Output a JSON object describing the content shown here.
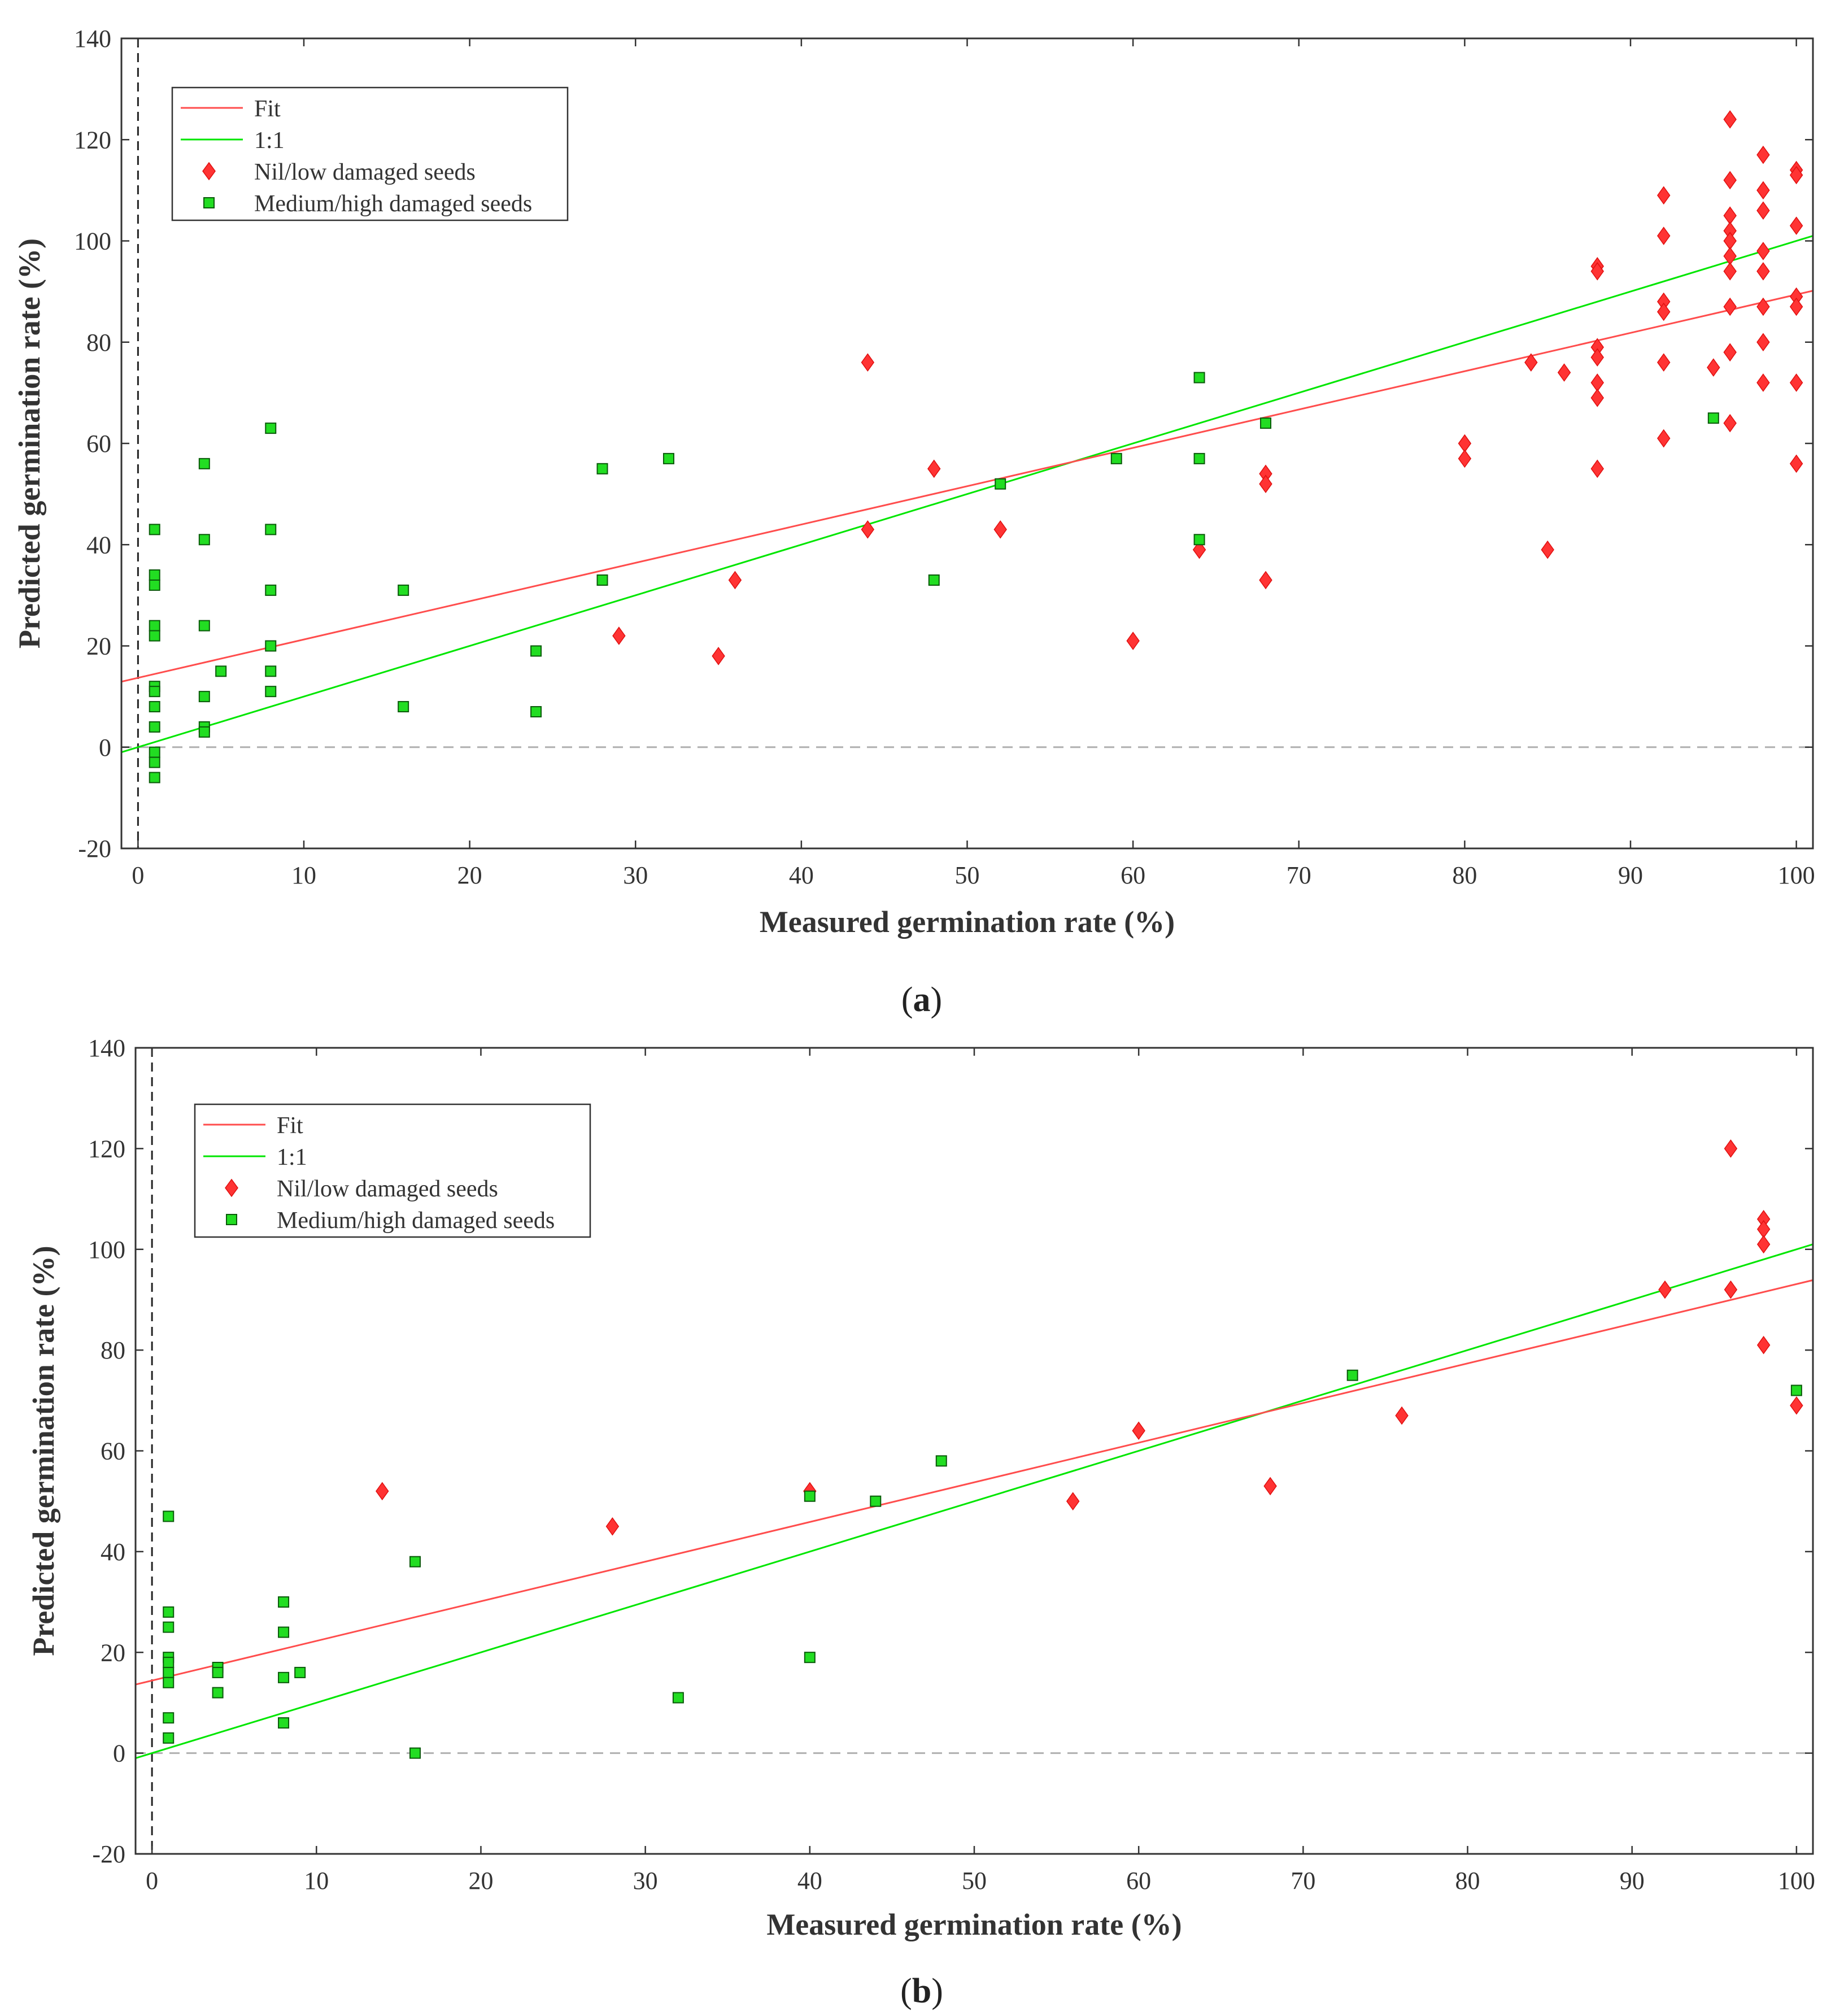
{
  "colors": {
    "fit": "#ff4d4d",
    "one_to_one": "#00e600",
    "nil_low": "#ff3333",
    "medium_high": "#22dd22",
    "zero_line": "#b0b0b0",
    "axis": "#333333"
  },
  "chart_data": [
    {
      "type": "scatter",
      "panel_label": "(a)",
      "panel_letter": "a",
      "xlabel": "Measured germination rate (%)",
      "ylabel": "Predicted germination rate (%)",
      "xlim": [
        -1,
        101
      ],
      "ylim": [
        -20,
        140
      ],
      "xticks": [
        0,
        10,
        20,
        30,
        40,
        50,
        60,
        70,
        80,
        90,
        100
      ],
      "yticks": [
        -20,
        0,
        20,
        40,
        60,
        80,
        100,
        120,
        140
      ],
      "legend_position": "top-left",
      "legend": [
        "Fit",
        "1:1",
        "Nil/low damaged seeds",
        "Medium/high damaged seeds"
      ],
      "lines": {
        "fit": {
          "intercept": 13.7,
          "slope": 0.757
        },
        "one_to_one": {
          "intercept": 0,
          "slope": 1
        }
      },
      "series": [
        {
          "name": "Nil/low damaged seeds",
          "marker": "diamond",
          "points": [
            [
              29,
              22
            ],
            [
              35,
              18
            ],
            [
              36,
              33
            ],
            [
              44,
              76
            ],
            [
              44,
              43
            ],
            [
              48,
              55
            ],
            [
              52,
              43
            ],
            [
              60,
              21
            ],
            [
              64,
              39
            ],
            [
              68,
              54
            ],
            [
              68,
              52
            ],
            [
              68,
              33
            ],
            [
              80,
              60
            ],
            [
              80,
              57
            ],
            [
              84,
              76
            ],
            [
              85,
              39
            ],
            [
              86,
              74
            ],
            [
              88,
              95
            ],
            [
              88,
              94
            ],
            [
              88,
              79
            ],
            [
              88,
              77
            ],
            [
              88,
              72
            ],
            [
              88,
              69
            ],
            [
              88,
              55
            ],
            [
              92,
              109
            ],
            [
              92,
              101
            ],
            [
              92,
              88
            ],
            [
              92,
              86
            ],
            [
              92,
              76
            ],
            [
              92,
              61
            ],
            [
              95,
              75
            ],
            [
              96,
              124
            ],
            [
              96,
              112
            ],
            [
              96,
              105
            ],
            [
              96,
              102
            ],
            [
              96,
              100
            ],
            [
              96,
              97
            ],
            [
              96,
              94
            ],
            [
              96,
              87
            ],
            [
              96,
              78
            ],
            [
              96,
              64
            ],
            [
              98,
              117
            ],
            [
              98,
              110
            ],
            [
              98,
              106
            ],
            [
              98,
              98
            ],
            [
              98,
              94
            ],
            [
              98,
              87
            ],
            [
              98,
              80
            ],
            [
              98,
              72
            ],
            [
              100,
              114
            ],
            [
              100,
              113
            ],
            [
              100,
              103
            ],
            [
              100,
              89
            ],
            [
              100,
              87
            ],
            [
              100,
              72
            ],
            [
              100,
              56
            ]
          ]
        },
        {
          "name": "Medium/high damaged seeds",
          "marker": "square",
          "points": [
            [
              1,
              43
            ],
            [
              1,
              34
            ],
            [
              1,
              32
            ],
            [
              1,
              24
            ],
            [
              1,
              22
            ],
            [
              1,
              12
            ],
            [
              1,
              11
            ],
            [
              1,
              8
            ],
            [
              1,
              4
            ],
            [
              1,
              -1
            ],
            [
              1,
              -3
            ],
            [
              1,
              -6
            ],
            [
              4,
              56
            ],
            [
              4,
              41
            ],
            [
              4,
              24
            ],
            [
              4,
              10
            ],
            [
              4,
              4
            ],
            [
              4,
              3
            ],
            [
              5,
              15
            ],
            [
              8,
              63
            ],
            [
              8,
              43
            ],
            [
              8,
              31
            ],
            [
              8,
              20
            ],
            [
              8,
              15
            ],
            [
              8,
              11
            ],
            [
              16,
              31
            ],
            [
              16,
              8
            ],
            [
              24,
              19
            ],
            [
              24,
              7
            ],
            [
              28,
              55
            ],
            [
              28,
              33
            ],
            [
              32,
              57
            ],
            [
              48,
              33
            ],
            [
              52,
              52
            ],
            [
              59,
              57
            ],
            [
              64,
              73
            ],
            [
              64,
              57
            ],
            [
              64,
              41
            ],
            [
              68,
              64
            ],
            [
              95,
              65
            ]
          ]
        }
      ]
    },
    {
      "type": "scatter",
      "panel_label": "(b)",
      "panel_letter": "b",
      "xlabel": "Measured germination rate (%)",
      "ylabel": "Predicted germination rate (%)",
      "xlim": [
        -1,
        101
      ],
      "ylim": [
        -20,
        140
      ],
      "xticks": [
        0,
        10,
        20,
        30,
        40,
        50,
        60,
        70,
        80,
        90,
        100
      ],
      "yticks": [
        -20,
        0,
        20,
        40,
        60,
        80,
        100,
        120,
        140
      ],
      "legend_position": "top-left",
      "legend": [
        "Fit",
        "1:1",
        "Nil/low damaged seeds",
        "Medium/high damaged seeds"
      ],
      "lines": {
        "fit": {
          "intercept": 14.4,
          "slope": 0.787
        },
        "one_to_one": {
          "intercept": 0,
          "slope": 1
        }
      },
      "series": [
        {
          "name": "Nil/low damaged seeds",
          "marker": "diamond",
          "points": [
            [
              14,
              52
            ],
            [
              28,
              45
            ],
            [
              40,
              52
            ],
            [
              56,
              50
            ],
            [
              60,
              64
            ],
            [
              68,
              53
            ],
            [
              76,
              67
            ],
            [
              92,
              92
            ],
            [
              96,
              120
            ],
            [
              96,
              92
            ],
            [
              98,
              106
            ],
            [
              98,
              104
            ],
            [
              98,
              101
            ],
            [
              98,
              81
            ],
            [
              100,
              69
            ]
          ]
        },
        {
          "name": "Medium/high damaged seeds",
          "marker": "square",
          "points": [
            [
              1,
              47
            ],
            [
              1,
              28
            ],
            [
              1,
              25
            ],
            [
              1,
              19
            ],
            [
              1,
              18
            ],
            [
              1,
              16
            ],
            [
              1,
              14
            ],
            [
              1,
              7
            ],
            [
              1,
              3
            ],
            [
              4,
              17
            ],
            [
              4,
              16
            ],
            [
              4,
              12
            ],
            [
              8,
              30
            ],
            [
              8,
              24
            ],
            [
              8,
              15
            ],
            [
              8,
              6
            ],
            [
              9,
              16
            ],
            [
              16,
              38
            ],
            [
              16,
              0
            ],
            [
              32,
              11
            ],
            [
              40,
              51
            ],
            [
              40,
              19
            ],
            [
              44,
              50
            ],
            [
              48,
              58
            ],
            [
              73,
              75
            ],
            [
              100,
              72
            ]
          ]
        }
      ]
    }
  ]
}
